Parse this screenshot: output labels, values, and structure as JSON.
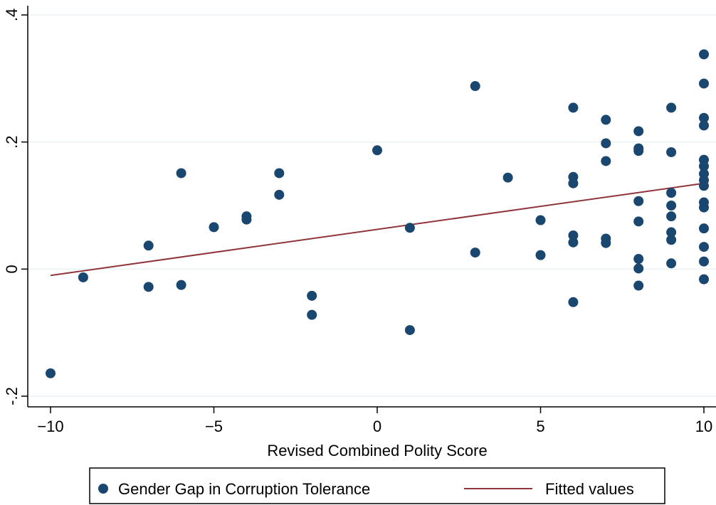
{
  "chart_data": {
    "type": "scatter",
    "title": "",
    "xlabel": "Revised Combined Polity Score",
    "ylabel": "",
    "xlim": [
      -10,
      10
    ],
    "ylim": [
      -0.2,
      0.4
    ],
    "xticks": [
      -10,
      -5,
      0,
      5,
      10
    ],
    "xtick_labels": [
      "−10",
      "−5",
      "0",
      "5",
      "10"
    ],
    "yticks": [
      -0.2,
      0,
      0.2,
      0.4
    ],
    "ytick_labels": [
      "-.2",
      "0",
      ".2",
      ".4"
    ],
    "grid": "horizontal",
    "legend_position": "bottom",
    "colors": {
      "points": "#1a476f",
      "fit": "#90353b",
      "grid": "#eaf2f3"
    },
    "series": [
      {
        "name": "Gender Gap in Corruption Tolerance",
        "kind": "scatter",
        "points": [
          {
            "x": -10,
            "y": -0.164
          },
          {
            "x": -9,
            "y": -0.013
          },
          {
            "x": -7,
            "y": 0.037
          },
          {
            "x": -7,
            "y": -0.028
          },
          {
            "x": -6,
            "y": 0.151
          },
          {
            "x": -6,
            "y": -0.025
          },
          {
            "x": -5,
            "y": 0.066
          },
          {
            "x": -4,
            "y": 0.083
          },
          {
            "x": -4,
            "y": 0.078
          },
          {
            "x": -3,
            "y": 0.151
          },
          {
            "x": -3,
            "y": 0.117
          },
          {
            "x": -2,
            "y": -0.042
          },
          {
            "x": -2,
            "y": -0.072
          },
          {
            "x": 0,
            "y": 0.187
          },
          {
            "x": 1,
            "y": 0.065
          },
          {
            "x": 1,
            "y": -0.096
          },
          {
            "x": 3,
            "y": 0.288
          },
          {
            "x": 3,
            "y": 0.026
          },
          {
            "x": 4,
            "y": 0.144
          },
          {
            "x": 5,
            "y": 0.077
          },
          {
            "x": 5,
            "y": 0.022
          },
          {
            "x": 6,
            "y": 0.254
          },
          {
            "x": 6,
            "y": 0.145
          },
          {
            "x": 6,
            "y": 0.135
          },
          {
            "x": 6,
            "y": 0.053
          },
          {
            "x": 6,
            "y": 0.042
          },
          {
            "x": 6,
            "y": -0.052
          },
          {
            "x": 7,
            "y": 0.235
          },
          {
            "x": 7,
            "y": 0.198
          },
          {
            "x": 7,
            "y": 0.17
          },
          {
            "x": 7,
            "y": 0.048
          },
          {
            "x": 7,
            "y": 0.041
          },
          {
            "x": 8,
            "y": 0.217
          },
          {
            "x": 8,
            "y": 0.19
          },
          {
            "x": 8,
            "y": 0.186
          },
          {
            "x": 8,
            "y": 0.107
          },
          {
            "x": 8,
            "y": 0.075
          },
          {
            "x": 8,
            "y": 0.016
          },
          {
            "x": 8,
            "y": 0.001
          },
          {
            "x": 8,
            "y": -0.026
          },
          {
            "x": 9,
            "y": 0.254
          },
          {
            "x": 9,
            "y": 0.184
          },
          {
            "x": 9,
            "y": 0.12
          },
          {
            "x": 9,
            "y": 0.1
          },
          {
            "x": 9,
            "y": 0.083
          },
          {
            "x": 9,
            "y": 0.058
          },
          {
            "x": 9,
            "y": 0.046
          },
          {
            "x": 9,
            "y": 0.009
          },
          {
            "x": 10,
            "y": 0.338
          },
          {
            "x": 10,
            "y": 0.292
          },
          {
            "x": 10,
            "y": 0.238
          },
          {
            "x": 10,
            "y": 0.226
          },
          {
            "x": 10,
            "y": 0.172
          },
          {
            "x": 10,
            "y": 0.162
          },
          {
            "x": 10,
            "y": 0.15
          },
          {
            "x": 10,
            "y": 0.14
          },
          {
            "x": 10,
            "y": 0.131
          },
          {
            "x": 10,
            "y": 0.105
          },
          {
            "x": 10,
            "y": 0.097
          },
          {
            "x": 10,
            "y": 0.064
          },
          {
            "x": 10,
            "y": 0.035
          },
          {
            "x": 10,
            "y": 0.012
          },
          {
            "x": 10,
            "y": -0.016
          }
        ]
      },
      {
        "name": "Fitted values",
        "kind": "line",
        "points": [
          {
            "x": -10,
            "y": -0.01
          },
          {
            "x": 10,
            "y": 0.135
          }
        ]
      }
    ]
  }
}
